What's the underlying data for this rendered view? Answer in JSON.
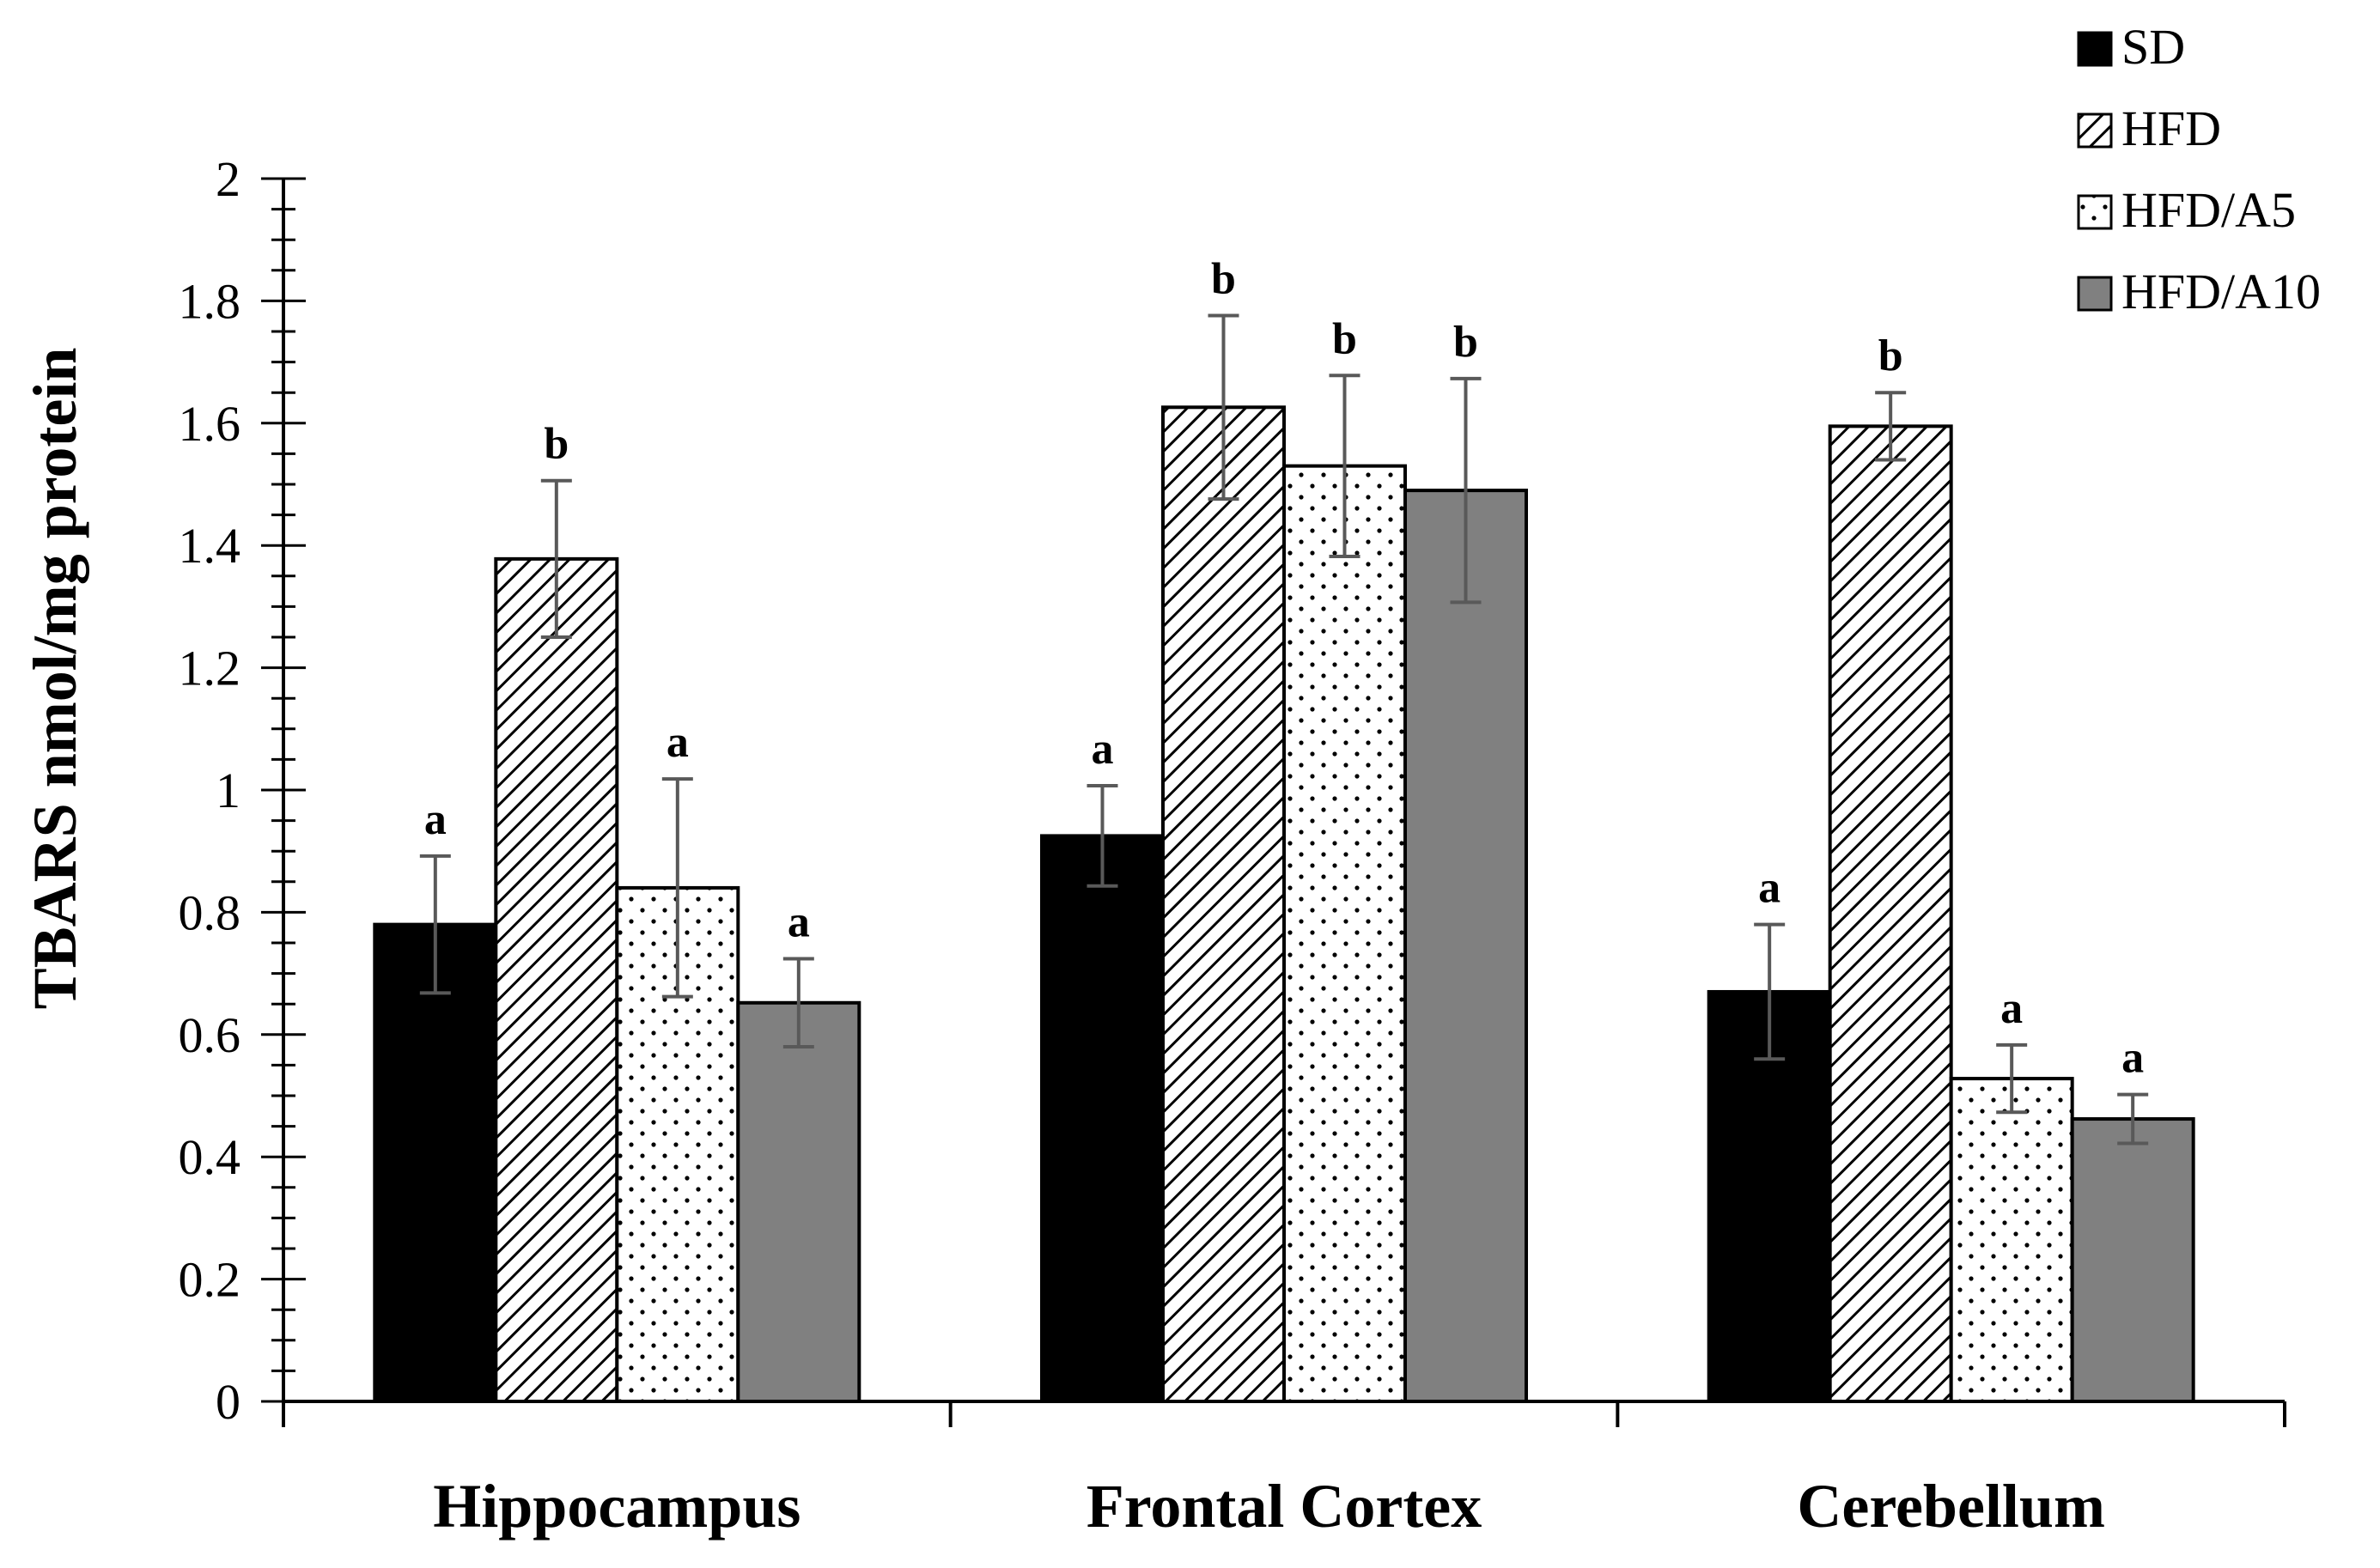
{
  "chart_data": {
    "type": "bar",
    "title": "",
    "xlabel": "",
    "ylabel": "TBARS nmol/mg protein",
    "ylim": [
      0,
      2
    ],
    "yticks": [
      "0",
      "0.2",
      "0.4",
      "0.6",
      "0.8",
      "1",
      "1.2",
      "1.4",
      "1.6",
      "1.8",
      "2"
    ],
    "categories": [
      "Hippocampus",
      "Frontal Cortex",
      "Cerebellum"
    ],
    "legend_position": "top-right",
    "series": [
      {
        "name": "SD",
        "fill": "solid-black",
        "values": [
          0.78,
          0.925,
          0.67
        ],
        "errors": [
          0.112,
          0.082,
          0.11
        ],
        "labels": [
          "a",
          "a",
          "a"
        ]
      },
      {
        "name": "HFD",
        "fill": "diagonal-hatch",
        "values": [
          1.378,
          1.626,
          1.595
        ],
        "errors": [
          0.128,
          0.15,
          0.055
        ],
        "labels": [
          "b",
          "b",
          "b"
        ]
      },
      {
        "name": "HFD/A5",
        "fill": "dotted-white",
        "values": [
          0.84,
          1.53,
          0.528
        ],
        "errors": [
          0.178,
          0.148,
          0.055
        ],
        "labels": [
          "a",
          "b",
          "a"
        ]
      },
      {
        "name": "HFD/A10",
        "fill": "solid-gray",
        "values": [
          0.652,
          1.49,
          0.462
        ],
        "errors": [
          0.072,
          0.183,
          0.04
        ],
        "labels": [
          "a",
          "b",
          "a"
        ]
      }
    ],
    "colors": {
      "SD": "#000000",
      "HFD": "#ffffff",
      "HFD/A5": "#ffffff",
      "HFD/A10": "#808080",
      "error_bar": "#595959"
    }
  }
}
